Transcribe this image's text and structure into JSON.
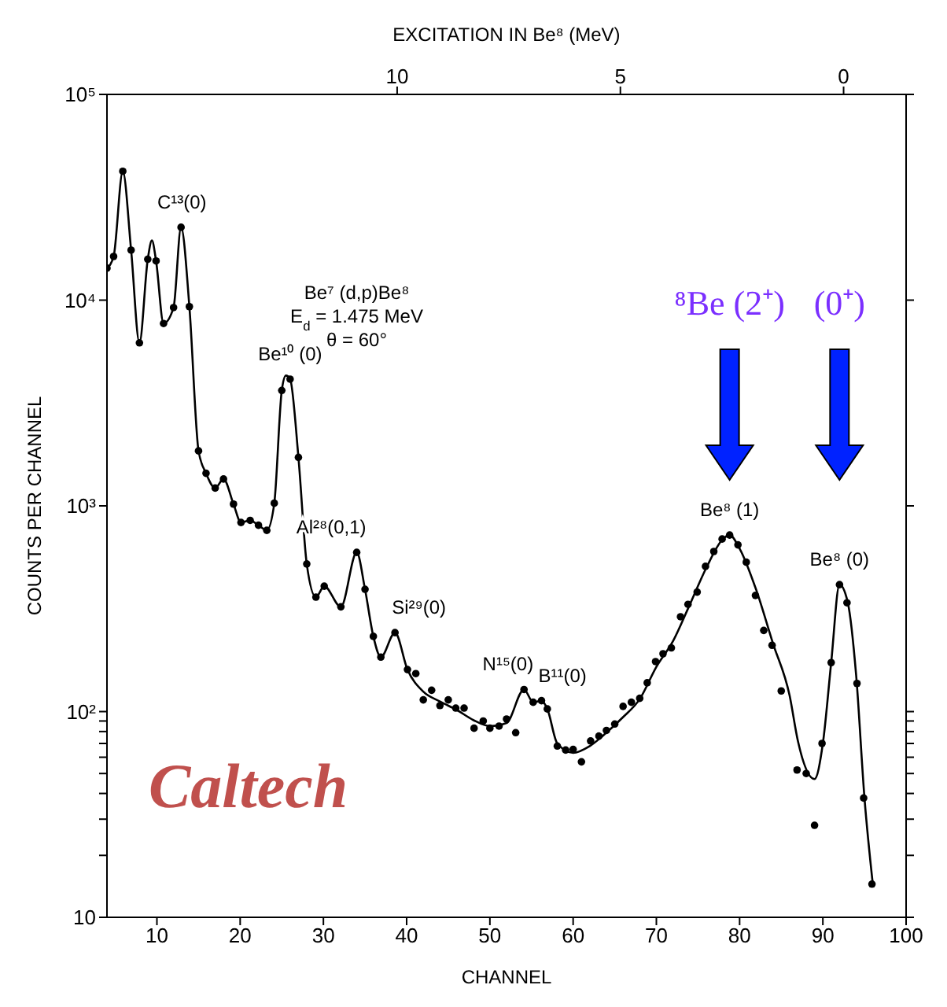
{
  "chart_data": {
    "type": "scatter",
    "xlabel": "CHANNEL",
    "ylabel": "COUNTS PER CHANNEL",
    "x2label": "EXCITATION IN Be⁸ (MeV)",
    "log": "y",
    "grid": false,
    "legend": false,
    "xlim": [
      4,
      100
    ],
    "xticks": [
      10,
      20,
      30,
      40,
      50,
      60,
      70,
      80,
      90,
      100
    ],
    "x2lim": [
      16.5,
      -1.4
    ],
    "x2ticks": [
      10,
      5,
      0
    ],
    "ylim": [
      10,
      100000
    ],
    "yticks": [
      {
        "value": 10,
        "label": "10"
      },
      {
        "value": 20,
        "label": null
      },
      {
        "value": 30,
        "label": null
      },
      {
        "value": 40,
        "label": null
      },
      {
        "value": 50,
        "label": null
      },
      {
        "value": 60,
        "label": null
      },
      {
        "value": 70,
        "label": null
      },
      {
        "value": 80,
        "label": null
      },
      {
        "value": 90,
        "label": null
      },
      {
        "value": 100,
        "label": "10²"
      },
      {
        "value": 1000,
        "label": "10³"
      },
      {
        "value": 10000,
        "label": "10⁴"
      },
      {
        "value": 100000,
        "label": "10⁵"
      }
    ],
    "series": [
      {
        "color": "#000000",
        "marker": "circle",
        "x": [
          4,
          4.8,
          5.9,
          6.9,
          7.9,
          8.9,
          9.9,
          10.8,
          12,
          12.9,
          13.9,
          15,
          15.9,
          17,
          18,
          19.2,
          20.1,
          21.2,
          22.2,
          23.2,
          24.1,
          25,
          26,
          27,
          28,
          29.1,
          30.1,
          32.1,
          34,
          35,
          36,
          36.9,
          38.6,
          40.1,
          41.1,
          42,
          43,
          44,
          45,
          45.9,
          46.9,
          48.1,
          49.2,
          50,
          51.1,
          52,
          53.1,
          54.1,
          55.2,
          56.2,
          56.9,
          58.1,
          59.1,
          60,
          61,
          62.1,
          63.1,
          64,
          65,
          66,
          67,
          68,
          68.9,
          69.9,
          70.8,
          71.8,
          72.9,
          73.8,
          74.9,
          75.9,
          76.9,
          77.9,
          78.8,
          79.8,
          80.8,
          81.9,
          82.9,
          83.9,
          85,
          86.9,
          88,
          89,
          89.9,
          91,
          92,
          92.9,
          94.1,
          94.9,
          95.9
        ],
        "values": [
          14300,
          16300,
          42300,
          17500,
          6200,
          15800,
          15500,
          7700,
          9200,
          22600,
          9300,
          1850,
          1440,
          1220,
          1350,
          1020,
          830,
          850,
          805,
          760,
          1030,
          3640,
          4130,
          1720,
          522,
          360,
          407,
          323,
          594,
          393,
          232,
          184,
          242,
          160,
          153,
          114,
          127,
          107,
          114,
          104,
          104,
          83,
          90,
          83,
          85,
          92,
          79,
          128,
          111,
          113,
          103,
          68,
          65,
          65.5,
          57,
          72,
          76,
          81,
          87,
          106,
          111,
          116,
          138,
          175,
          191,
          204,
          289,
          332,
          381,
          508,
          600,
          690,
          721,
          646,
          532,
          367,
          248,
          210,
          126,
          52,
          50,
          28,
          70,
          173,
          414,
          338,
          137,
          38,
          14.5
        ]
      },
      {
        "type": "line",
        "color": "#000000",
        "x": [
          4,
          4.8,
          5.9,
          6.9,
          7.9,
          8.9,
          9.4,
          9.9,
          10.8,
          12,
          12.9,
          13.9,
          15,
          15.9,
          17,
          18,
          19.2,
          20.1,
          21.2,
          22.2,
          23.2,
          24.1,
          25,
          25.5,
          26,
          27,
          28,
          29.1,
          30.1,
          32.1,
          34,
          35,
          36,
          36.9,
          38.6,
          40.1,
          42,
          44,
          46,
          48,
          50,
          52,
          54.1,
          55.2,
          56.2,
          56.9,
          58.1,
          60,
          62,
          64,
          66,
          68,
          70,
          72,
          74,
          76,
          78,
          78.8,
          80,
          82,
          84,
          86,
          87,
          89,
          90,
          91,
          92,
          93,
          94,
          95,
          96
        ],
        "values": [
          14300,
          16300,
          42300,
          17500,
          6200,
          15800,
          19500,
          15500,
          7700,
          9200,
          22600,
          9300,
          1850,
          1440,
          1220,
          1350,
          1020,
          830,
          850,
          805,
          760,
          1030,
          3640,
          4300,
          4130,
          1720,
          522,
          360,
          407,
          323,
          594,
          393,
          232,
          184,
          242,
          160,
          125,
          112,
          102,
          91,
          85,
          88,
          128,
          111,
          113,
          103,
          70,
          63,
          68,
          79,
          94,
          115,
          165,
          220,
          330,
          500,
          690,
          721,
          620,
          390,
          215,
          120,
          72,
          47,
          70,
          173,
          414,
          338,
          150,
          38,
          14.5
        ]
      }
    ],
    "annotations": [
      {
        "text": "C¹³(0)",
        "x": 13,
        "y": 22600
      },
      {
        "text": "Be¹⁰ (0)",
        "x": 26,
        "y": 4130
      },
      {
        "text": "Al²⁸(0,1)",
        "x": 34,
        "y": 594
      },
      {
        "text": "Si²⁹(0)",
        "x": 38.6,
        "y": 242
      },
      {
        "text": "N¹⁵(0)",
        "x": 54.1,
        "y": 128
      },
      {
        "text": "B¹¹(0)",
        "x": 56.2,
        "y": 113
      },
      {
        "text": "Be⁸ (1)",
        "x": 78.8,
        "y": 721
      },
      {
        "text": "Be⁸ (0)",
        "x": 92,
        "y": 414
      },
      "⁸Be (2⁺)",
      "(0⁺)",
      "Be⁷ (d,p)Be⁸",
      "E$_{d}$ = 1.475 MeV",
      "θ = 60°",
      "Caltech"
    ]
  }
}
